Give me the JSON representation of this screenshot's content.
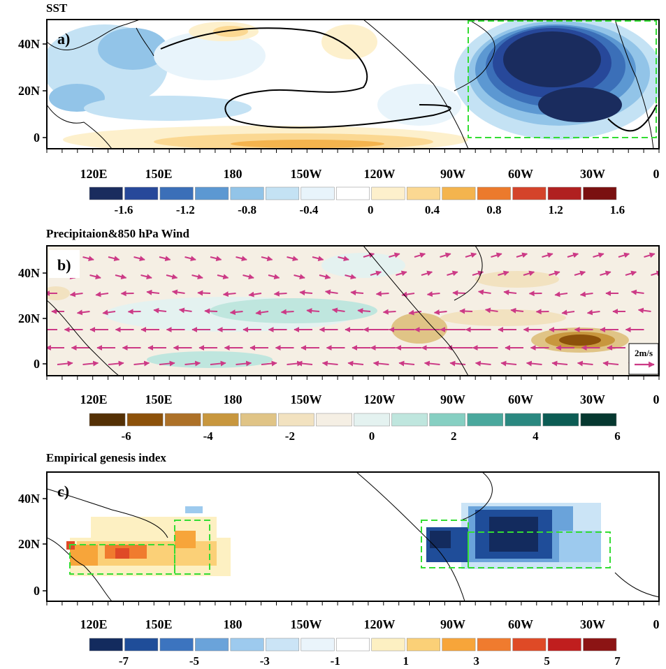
{
  "chart_data": [
    {
      "type": "heatmap",
      "title": "SST",
      "panel_label": "a)",
      "x_ticks": [
        "120E",
        "150E",
        "180",
        "150W",
        "120W",
        "90W",
        "60W",
        "30W",
        "0"
      ],
      "y_ticks": [
        "40N",
        "20N",
        "0"
      ],
      "colorbar": {
        "labels": [
          "-1.6",
          "-1.2",
          "-0.8",
          "-0.4",
          "0",
          "0.4",
          "0.8",
          "1.2",
          "1.6"
        ],
        "colors": [
          "#1a2c5e",
          "#27489a",
          "#3b6fb8",
          "#5c98d2",
          "#92c4e8",
          "#c4e2f4",
          "#e8f4fb",
          "#ffffff",
          "#fdf0cc",
          "#fbd892",
          "#f4b44e",
          "#ec7a2c",
          "#d4432a",
          "#b02020",
          "#7a1010"
        ]
      },
      "regions": [
        {
          "name": "North Atlantic box",
          "lon": [
            -80,
            0
          ],
          "lat": [
            0,
            50
          ]
        }
      ]
    },
    {
      "type": "heatmap",
      "title": "Precipitaion&850 hPa Wind",
      "panel_label": "b)",
      "x_ticks": [
        "120E",
        "150E",
        "180",
        "150W",
        "120W",
        "90W",
        "60W",
        "30W",
        "0"
      ],
      "y_ticks": [
        "40N",
        "20N",
        "0"
      ],
      "reference_vector": "2m/s",
      "colorbar": {
        "labels": [
          "-6",
          "-4",
          "-2",
          "0",
          "2",
          "4",
          "6"
        ],
        "colors": [
          "#543005",
          "#8c510a",
          "#ad7128",
          "#c8973e",
          "#e0c486",
          "#f2e2c0",
          "#f5efe4",
          "#e4f2f0",
          "#bfe6de",
          "#86cfc2",
          "#4aa89d",
          "#2a8880",
          "#0c5c54",
          "#063830"
        ]
      }
    },
    {
      "type": "heatmap",
      "title": "Empirical genesis index",
      "panel_label": "c)",
      "x_ticks": [
        "120E",
        "150E",
        "180",
        "150W",
        "120W",
        "90W",
        "60W",
        "30W",
        "0"
      ],
      "y_ticks": [
        "40N",
        "20N",
        "0"
      ],
      "colorbar": {
        "labels": [
          "-7",
          "-5",
          "-3",
          "-1",
          "1",
          "3",
          "5",
          "7"
        ],
        "colors": [
          "#132b5e",
          "#1f4d99",
          "#3c74bf",
          "#6aa3da",
          "#9dcaee",
          "#cbe4f6",
          "#eaf4fb",
          "#ffffff",
          "#fdf0c2",
          "#fbd077",
          "#f7a53a",
          "#f07b2e",
          "#df4a26",
          "#c01e1e",
          "#8c1414"
        ]
      },
      "regions": [
        {
          "name": "WNP box 1",
          "lon": [
            110,
            150
          ],
          "lat": [
            8,
            20
          ]
        },
        {
          "name": "WNP box 2",
          "lon": [
            150,
            160
          ],
          "lat": [
            8,
            30
          ]
        },
        {
          "name": "NA box 1",
          "lon": [
            -100,
            -80
          ],
          "lat": [
            10,
            30
          ]
        },
        {
          "name": "NA box 2",
          "lon": [
            -80,
            -20
          ],
          "lat": [
            10,
            25
          ]
        }
      ]
    }
  ]
}
